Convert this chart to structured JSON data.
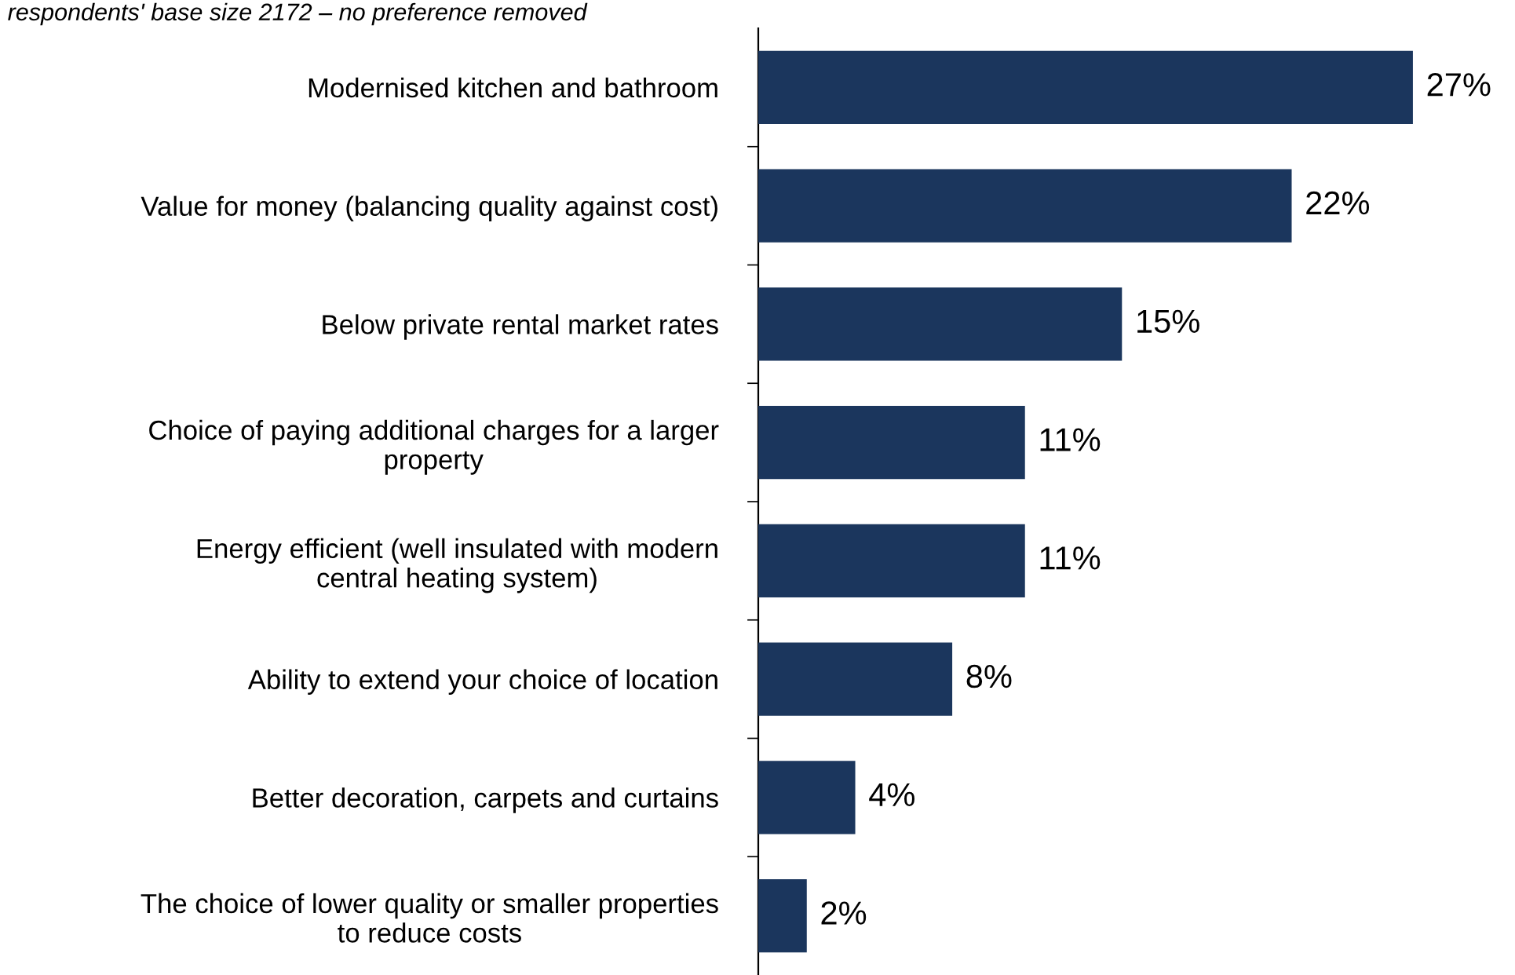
{
  "chart_data": {
    "type": "bar",
    "orientation": "horizontal",
    "subtitle": "respondents' base size 2172 – no preference removed",
    "categories": [
      "Modernised kitchen and bathroom",
      "Value for money (balancing quality against cost)",
      "Below private rental market rates",
      "Choice of paying additional charges for a larger\nproperty",
      "Energy efficient (well insulated with modern\ncentral heating system)",
      "Ability to extend your choice of location",
      "Better decoration, carpets and curtains",
      "The choice of lower quality or smaller properties\nto reduce costs"
    ],
    "values": [
      27,
      22,
      15,
      11,
      11,
      8,
      4,
      2
    ],
    "value_labels": [
      "27%",
      "22%",
      "15%",
      "11%",
      "11%",
      "8%",
      "4%",
      "2%"
    ],
    "color": "#1b365d",
    "grid": false,
    "legend": false
  }
}
